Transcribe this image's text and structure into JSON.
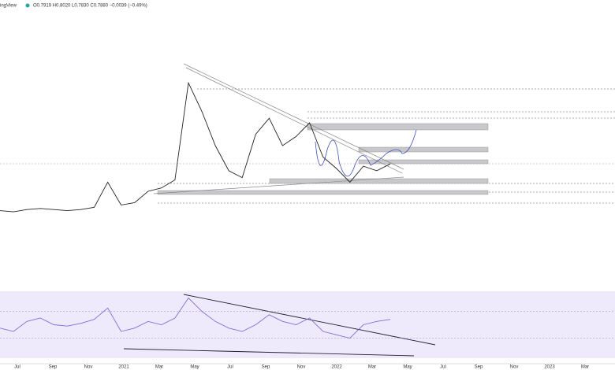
{
  "header": {
    "brand": "ingView",
    "quote": "O0.7919 H0.8020 L0.7830 C0.7880 −0.0039 (−0.49%)"
  },
  "x_axis_labels": [
    "Jul",
    "Sep",
    "Nov",
    "2021",
    "Mar",
    "May",
    "Jul",
    "Sep",
    "Nov",
    "2022",
    "Mar",
    "May",
    "Jul",
    "Sep",
    "Nov",
    "2023",
    "Mar"
  ],
  "chart_data": [
    {
      "type": "line",
      "color": "#222222",
      "ylim": [
        0,
        2
      ],
      "values": [
        0.43,
        0.42,
        0.44,
        0.45,
        0.44,
        0.43,
        0.44,
        0.46,
        0.68,
        0.48,
        0.5,
        0.6,
        0.63,
        0.7,
        1.55,
        1.3,
        1.0,
        0.78,
        0.72,
        1.1,
        1.24,
        1.0,
        1.08,
        1.2,
        0.9,
        0.8,
        0.68,
        0.82,
        0.78,
        0.84
      ]
    },
    {
      "type": "line",
      "color": "#7e6fd8",
      "ylim": [
        0,
        100
      ],
      "yticks": [
        30,
        70
      ],
      "values": [
        45,
        40,
        55,
        60,
        50,
        48,
        52,
        58,
        75,
        40,
        45,
        55,
        50,
        60,
        90,
        70,
        55,
        45,
        40,
        50,
        65,
        55,
        50,
        60,
        40,
        35,
        30,
        50,
        55,
        58
      ]
    }
  ]
}
